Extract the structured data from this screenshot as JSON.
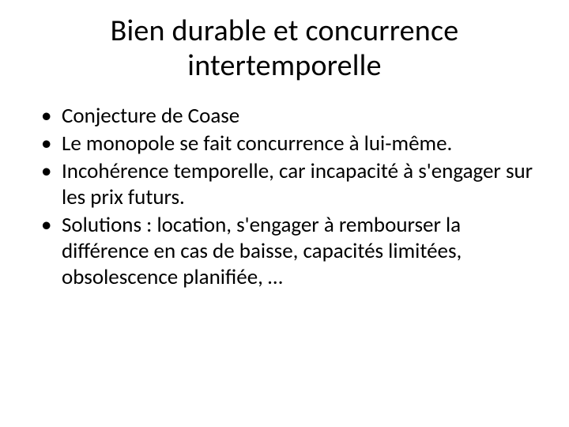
{
  "slide": {
    "title": "Bien durable et concurrence intertemporelle",
    "bullets": [
      "Conjecture de Coase",
      "Le monopole se fait concurrence à lui-même.",
      "Incohérence temporelle, car incapacité à s'engager sur les prix futurs.",
      "Solutions : location, s'engager à rembourser la différence en cas de baisse, capacités limitées, obsolescence planifiée, …"
    ]
  },
  "style": {
    "background_color": "#ffffff",
    "text_color": "#000000",
    "title_fontsize": 38,
    "body_fontsize": 27,
    "font_family": "Calibri"
  }
}
